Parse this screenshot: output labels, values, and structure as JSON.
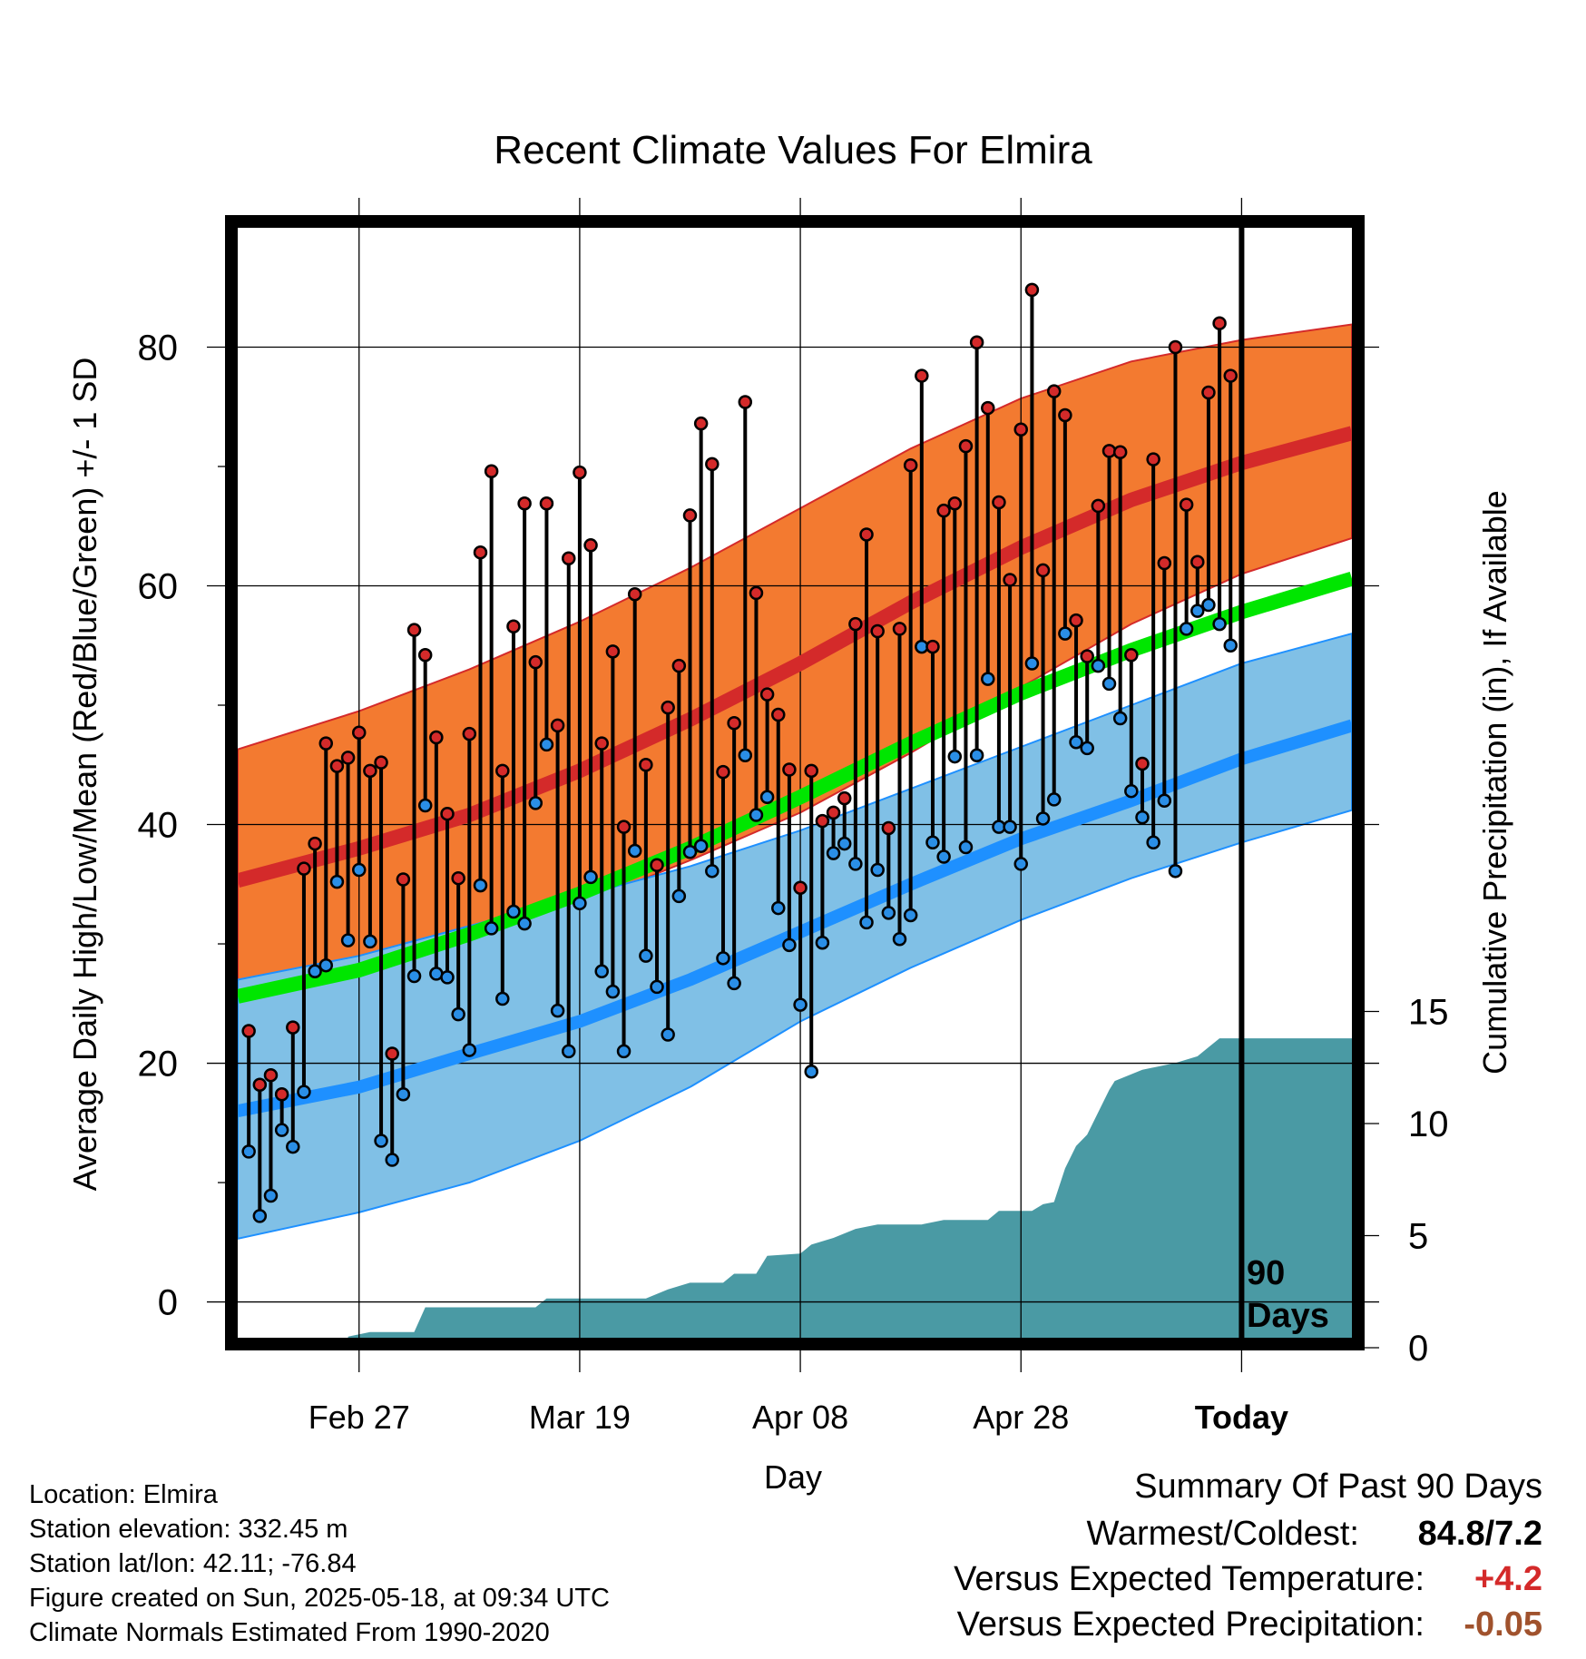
{
  "colors": {
    "high_band": "#f37a30",
    "high_line": "#d42a2a",
    "low_band": "#80c0e6",
    "low_line": "#1e90ff",
    "mean_line": "#00e600",
    "precip_fill": "#4a9aa4",
    "high_dot": "#d42a2a",
    "low_dot": "#2a8ee6",
    "warm_delta": "#d42a2a",
    "precip_delta": "#a0522d"
  },
  "chart_data": {
    "type": "line",
    "title": "Recent Climate Values For Elmira",
    "xlabel": "Day",
    "ylabel": "Average Daily High/Low/Mean (Red/Blue/Green) +/- 1 SD",
    "y2label": "Cumulative Precipitation (in), If Available",
    "xlim": [
      -11,
      90
    ],
    "ylim": [
      -3,
      90
    ],
    "y2lim": [
      0,
      50
    ],
    "x_ticks": [
      {
        "x": 0,
        "label": "Feb 27"
      },
      {
        "x": 20,
        "label": "Mar 19"
      },
      {
        "x": 40,
        "label": "Apr 08"
      },
      {
        "x": 60,
        "label": "Apr 28"
      },
      {
        "x": 80,
        "label": "Today"
      }
    ],
    "y_ticks": [
      0,
      20,
      40,
      60,
      80
    ],
    "y2_ticks": [
      0,
      5,
      10,
      15
    ],
    "today_x": 80,
    "today_annotation": [
      "90",
      "Days"
    ],
    "normal_high": {
      "x": [
        -11,
        0,
        10,
        20,
        30,
        40,
        50,
        60,
        70,
        80,
        90
      ],
      "mean": [
        35.3,
        38.0,
        40.8,
        44.5,
        48.8,
        53.5,
        58.6,
        63.2,
        67.2,
        70.3,
        72.8
      ],
      "upper": [
        46.3,
        49.5,
        53.0,
        57.0,
        61.5,
        66.5,
        71.5,
        75.7,
        78.8,
        80.6,
        81.9
      ],
      "lower": [
        26.8,
        28.5,
        30.5,
        33.3,
        37.0,
        41.0,
        46.0,
        51.5,
        56.8,
        61.0,
        64.0
      ]
    },
    "normal_low": {
      "x": [
        -11,
        0,
        10,
        20,
        30,
        40,
        50,
        60,
        70,
        80,
        90
      ],
      "mean": [
        16.0,
        18.0,
        20.8,
        23.5,
        27.0,
        31.0,
        35.0,
        38.8,
        42.0,
        45.5,
        48.3
      ],
      "upper": [
        27.0,
        29.0,
        31.5,
        34.0,
        36.5,
        39.5,
        43.0,
        46.5,
        50.0,
        53.5,
        56.0
      ],
      "lower": [
        5.3,
        7.5,
        10.0,
        13.5,
        18.0,
        23.5,
        28.0,
        32.0,
        35.5,
        38.5,
        41.2
      ]
    },
    "normal_mean": {
      "x": [
        -11,
        0,
        10,
        20,
        30,
        40,
        50,
        60,
        70,
        80,
        90
      ],
      "values": [
        25.6,
        27.8,
        30.8,
        34.2,
        38.0,
        42.3,
        46.8,
        51.0,
        54.6,
        57.8,
        60.6
      ]
    },
    "daily": [
      {
        "x": -10,
        "high": 22.7,
        "low": 12.6
      },
      {
        "x": -9,
        "high": 18.2,
        "low": 7.2
      },
      {
        "x": -8,
        "high": 19.0,
        "low": 8.9
      },
      {
        "x": -7,
        "high": 17.4,
        "low": 14.4
      },
      {
        "x": -6,
        "high": 23.0,
        "low": 13.0
      },
      {
        "x": -5,
        "high": 36.3,
        "low": 17.6
      },
      {
        "x": -4,
        "high": 38.4,
        "low": 27.7
      },
      {
        "x": -3,
        "high": 46.8,
        "low": 28.2
      },
      {
        "x": -2,
        "high": 44.9,
        "low": 35.2
      },
      {
        "x": -1,
        "high": 45.6,
        "low": 30.3
      },
      {
        "x": 0,
        "high": 47.7,
        "low": 36.2
      },
      {
        "x": 1,
        "high": 44.5,
        "low": 30.2
      },
      {
        "x": 2,
        "high": 45.2,
        "low": 13.5
      },
      {
        "x": 3,
        "high": 20.8,
        "low": 11.9
      },
      {
        "x": 4,
        "high": 35.4,
        "low": 17.4
      },
      {
        "x": 5,
        "high": 56.3,
        "low": 27.3
      },
      {
        "x": 6,
        "high": 54.2,
        "low": 41.6
      },
      {
        "x": 7,
        "high": 47.3,
        "low": 27.5
      },
      {
        "x": 8,
        "high": 40.9,
        "low": 27.2
      },
      {
        "x": 9,
        "high": 35.5,
        "low": 24.1
      },
      {
        "x": 10,
        "high": 47.6,
        "low": 21.1
      },
      {
        "x": 11,
        "high": 62.8,
        "low": 34.9
      },
      {
        "x": 12,
        "high": 69.6,
        "low": 31.3
      },
      {
        "x": 13,
        "high": 44.5,
        "low": 25.4
      },
      {
        "x": 14,
        "high": 56.6,
        "low": 32.7
      },
      {
        "x": 15,
        "high": 66.9,
        "low": 31.7
      },
      {
        "x": 16,
        "high": 53.6,
        "low": 41.8
      },
      {
        "x": 17,
        "high": 66.9,
        "low": 46.7
      },
      {
        "x": 18,
        "high": 48.3,
        "low": 24.4
      },
      {
        "x": 19,
        "high": 62.3,
        "low": 21.0
      },
      {
        "x": 20,
        "high": 69.5,
        "low": 33.4
      },
      {
        "x": 21,
        "high": 63.4,
        "low": 35.6
      },
      {
        "x": 22,
        "high": 46.8,
        "low": 27.7
      },
      {
        "x": 23,
        "high": 54.5,
        "low": 26.0
      },
      {
        "x": 24,
        "high": 39.8,
        "low": 21.0
      },
      {
        "x": 25,
        "high": 59.3,
        "low": 37.8
      },
      {
        "x": 26,
        "high": 45.0,
        "low": 29.0
      },
      {
        "x": 27,
        "high": 36.6,
        "low": 26.4
      },
      {
        "x": 28,
        "high": 49.8,
        "low": 22.4
      },
      {
        "x": 29,
        "high": 53.3,
        "low": 34.0
      },
      {
        "x": 30,
        "high": 65.9,
        "low": 37.7
      },
      {
        "x": 31,
        "high": 73.6,
        "low": 38.2
      },
      {
        "x": 32,
        "high": 70.2,
        "low": 36.1
      },
      {
        "x": 33,
        "high": 44.4,
        "low": 28.8
      },
      {
        "x": 34,
        "high": 48.5,
        "low": 26.7
      },
      {
        "x": 35,
        "high": 75.4,
        "low": 45.8
      },
      {
        "x": 36,
        "high": 59.4,
        "low": 40.8
      },
      {
        "x": 37,
        "high": 50.9,
        "low": 42.3
      },
      {
        "x": 38,
        "high": 49.2,
        "low": 33.0
      },
      {
        "x": 39,
        "high": 44.6,
        "low": 29.9
      },
      {
        "x": 40,
        "high": 34.7,
        "low": 24.9
      },
      {
        "x": 41,
        "high": 44.5,
        "low": 19.3
      },
      {
        "x": 42,
        "high": 40.3,
        "low": 30.1
      },
      {
        "x": 43,
        "high": 41.0,
        "low": 37.6
      },
      {
        "x": 44,
        "high": 42.2,
        "low": 38.4
      },
      {
        "x": 45,
        "high": 56.8,
        "low": 36.7
      },
      {
        "x": 46,
        "high": 64.3,
        "low": 31.8
      },
      {
        "x": 47,
        "high": 56.2,
        "low": 36.2
      },
      {
        "x": 48,
        "high": 39.7,
        "low": 32.6
      },
      {
        "x": 49,
        "high": 56.4,
        "low": 30.4
      },
      {
        "x": 50,
        "high": 70.1,
        "low": 32.4
      },
      {
        "x": 51,
        "high": 77.6,
        "low": 54.9
      },
      {
        "x": 52,
        "high": 54.9,
        "low": 38.5
      },
      {
        "x": 53,
        "high": 66.3,
        "low": 37.3
      },
      {
        "x": 54,
        "high": 66.9,
        "low": 45.7
      },
      {
        "x": 55,
        "high": 71.7,
        "low": 38.1
      },
      {
        "x": 56,
        "high": 80.4,
        "low": 45.8
      },
      {
        "x": 57,
        "high": 74.9,
        "low": 52.2
      },
      {
        "x": 58,
        "high": 67.0,
        "low": 39.8
      },
      {
        "x": 59,
        "high": 60.5,
        "low": 39.8
      },
      {
        "x": 60,
        "high": 73.1,
        "low": 36.7
      },
      {
        "x": 61,
        "high": 84.8,
        "low": 53.5
      },
      {
        "x": 62,
        "high": 61.3,
        "low": 40.5
      },
      {
        "x": 63,
        "high": 76.3,
        "low": 42.1
      },
      {
        "x": 64,
        "high": 74.3,
        "low": 56.0
      },
      {
        "x": 65,
        "high": 57.1,
        "low": 46.9
      },
      {
        "x": 66,
        "high": 54.1,
        "low": 46.4
      },
      {
        "x": 67,
        "high": 66.7,
        "low": 53.3
      },
      {
        "x": 68,
        "high": 71.3,
        "low": 51.8
      },
      {
        "x": 69,
        "high": 71.2,
        "low": 48.9
      },
      {
        "x": 70,
        "high": 54.2,
        "low": 42.8
      },
      {
        "x": 71,
        "high": 45.1,
        "low": 40.6
      },
      {
        "x": 72,
        "high": 70.6,
        "low": 38.5
      },
      {
        "x": 73,
        "high": 61.9,
        "low": 42.0
      },
      {
        "x": 74,
        "high": 80.0,
        "low": 36.1
      },
      {
        "x": 75,
        "high": 66.8,
        "low": 56.4
      },
      {
        "x": 76,
        "high": 62.0,
        "low": 57.9
      },
      {
        "x": 77,
        "high": 76.2,
        "low": 58.4
      },
      {
        "x": 78,
        "high": 82.0,
        "low": 56.8
      },
      {
        "x": 79,
        "high": 77.6,
        "low": 55.0
      }
    ],
    "precip": {
      "x": [
        -11,
        -1,
        -1,
        1,
        2,
        5,
        6,
        16,
        17,
        26,
        28,
        30,
        33,
        34,
        36,
        37,
        40,
        41,
        43,
        45,
        47,
        51,
        53,
        57,
        58,
        61,
        62,
        63,
        64,
        65,
        66,
        68,
        68.5,
        69,
        71,
        74,
        76,
        77,
        78,
        90
      ],
      "y": [
        0,
        0,
        0.5,
        0.7,
        0.7,
        0.7,
        1.8,
        1.8,
        2.2,
        2.2,
        2.6,
        2.9,
        2.9,
        3.3,
        3.3,
        4.1,
        4.2,
        4.6,
        4.9,
        5.3,
        5.5,
        5.5,
        5.7,
        5.7,
        6.1,
        6.1,
        6.4,
        6.5,
        8.0,
        9.0,
        9.5,
        11.5,
        11.9,
        12.0,
        12.4,
        12.7,
        13.0,
        13.4,
        13.8,
        13.8
      ]
    }
  },
  "footer": {
    "location": "Location: Elmira",
    "elevation": "Station elevation: 332.45 m",
    "latlon": "Station lat/lon: 42.11; -76.84",
    "created": "Figure created on Sun, 2025-05-18, at 09:34 UTC",
    "normals": "Climate Normals Estimated From 1990-2020"
  },
  "summary": {
    "title": "Summary Of Past 90 Days",
    "warm_cold_label": "Warmest/Coldest:",
    "warm_cold_value": "84.8/7.2",
    "temp_label": "Versus Expected Temperature:",
    "temp_value": "+4.2",
    "precip_label": "Versus Expected Precipitation:",
    "precip_value": "-0.05"
  }
}
